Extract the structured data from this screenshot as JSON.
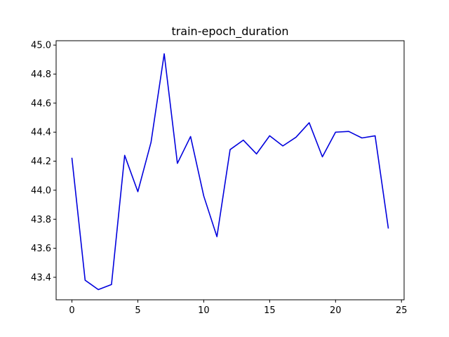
{
  "chart_data": {
    "type": "line",
    "title": "train-epoch_duration",
    "xlabel": "",
    "ylabel": "",
    "xlim": [
      -1.2,
      25.2
    ],
    "ylim": [
      43.245,
      45.03
    ],
    "x_ticks": [
      0,
      5,
      10,
      15,
      20,
      25
    ],
    "x_tick_labels": [
      "0",
      "5",
      "10",
      "15",
      "20",
      "25"
    ],
    "y_ticks": [
      43.4,
      43.6,
      43.8,
      44.0,
      44.2,
      44.4,
      44.6,
      44.8,
      45.0
    ],
    "y_tick_labels": [
      "43.4",
      "43.6",
      "43.8",
      "44.0",
      "44.2",
      "44.4",
      "44.6",
      "44.8",
      "45.0"
    ],
    "grid": false,
    "series": [
      {
        "color": "#0000dd",
        "x": [
          0,
          1,
          2,
          3,
          4,
          5,
          6,
          7,
          8,
          9,
          10,
          11,
          12,
          13,
          14,
          15,
          16,
          17,
          18,
          19,
          20,
          21,
          22,
          23,
          24
        ],
        "y": [
          44.22,
          43.38,
          43.315,
          43.35,
          44.24,
          43.99,
          44.33,
          44.94,
          44.185,
          44.37,
          43.96,
          43.68,
          44.28,
          44.345,
          44.25,
          44.375,
          44.305,
          44.365,
          44.465,
          44.23,
          44.4,
          44.405,
          44.36,
          44.375,
          43.74
        ]
      }
    ]
  }
}
